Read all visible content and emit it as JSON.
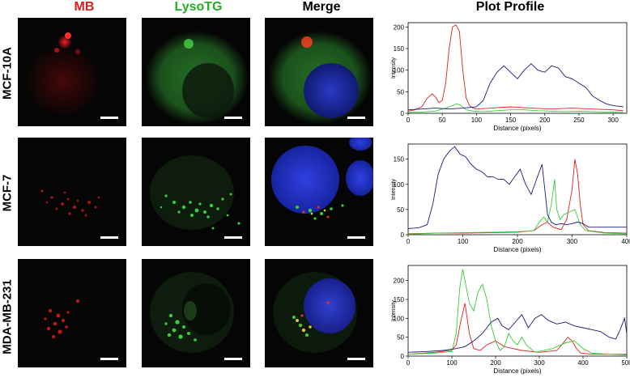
{
  "columns": {
    "mb": {
      "label": "MB",
      "color": "#d42020"
    },
    "lyso": {
      "label": "LysoTG",
      "color": "#22b022"
    },
    "merge": {
      "label": "Merge",
      "color": "#000000"
    },
    "plot": {
      "label": "Plot Profile",
      "color": "#000000"
    }
  },
  "rows": [
    {
      "label": "MCF-10A"
    },
    {
      "label": "MCF-7"
    },
    {
      "label": "MDA-MB-231"
    }
  ],
  "colors": {
    "red": "#e02020",
    "green": "#30d030",
    "blue": "#1a1a80"
  },
  "chart_data": [
    {
      "type": "line",
      "title": "",
      "xlabel": "Distance (pixels)",
      "ylabel": "Intensity",
      "xlim": [
        0,
        320
      ],
      "ylim": [
        0,
        210
      ],
      "xticks": [
        0,
        50,
        100,
        150,
        200,
        250,
        300
      ],
      "yticks": [
        0,
        50,
        100,
        150,
        200
      ],
      "series": [
        {
          "color": "#e02020",
          "x": [
            0,
            10,
            20,
            28,
            35,
            40,
            45,
            50,
            55,
            60,
            65,
            70,
            75,
            80,
            85,
            90,
            95,
            100,
            120,
            150,
            180,
            210,
            240,
            270,
            300,
            315
          ],
          "y": [
            5,
            8,
            15,
            35,
            45,
            38,
            25,
            30,
            70,
            150,
            200,
            205,
            190,
            100,
            35,
            18,
            12,
            10,
            12,
            15,
            12,
            10,
            12,
            10,
            8,
            6
          ]
        },
        {
          "color": "#30d030",
          "x": [
            0,
            20,
            40,
            55,
            65,
            70,
            75,
            80,
            85,
            95,
            110,
            130,
            150,
            170,
            190,
            210,
            230,
            250,
            270,
            290,
            315
          ],
          "y": [
            2,
            3,
            5,
            12,
            18,
            22,
            20,
            15,
            8,
            5,
            4,
            6,
            8,
            8,
            6,
            5,
            4,
            5,
            4,
            3,
            2
          ]
        },
        {
          "color": "#1a1a80",
          "x": [
            0,
            20,
            40,
            60,
            80,
            100,
            110,
            120,
            130,
            140,
            150,
            160,
            170,
            180,
            190,
            200,
            210,
            220,
            230,
            240,
            250,
            260,
            270,
            280,
            290,
            300,
            315
          ],
          "y": [
            8,
            10,
            12,
            10,
            12,
            15,
            30,
            70,
            95,
            110,
            95,
            80,
            100,
            115,
            100,
            95,
            110,
            105,
            85,
            80,
            70,
            60,
            40,
            30,
            22,
            18,
            15
          ]
        }
      ]
    },
    {
      "type": "line",
      "title": "",
      "xlabel": "Distance (pixels)",
      "ylabel": "Intensity",
      "xlim": [
        0,
        400
      ],
      "ylim": [
        0,
        180
      ],
      "xticks": [
        0,
        100,
        200,
        300,
        400
      ],
      "yticks": [
        0,
        50,
        100,
        150
      ],
      "series": [
        {
          "color": "#e02020",
          "x": [
            0,
            50,
            100,
            150,
            200,
            230,
            245,
            255,
            265,
            280,
            290,
            300,
            305,
            310,
            315,
            320,
            330,
            360,
            400
          ],
          "y": [
            2,
            3,
            3,
            4,
            5,
            8,
            20,
            25,
            15,
            10,
            30,
            90,
            150,
            120,
            60,
            20,
            8,
            4,
            3
          ]
        },
        {
          "color": "#30d030",
          "x": [
            0,
            50,
            100,
            150,
            200,
            230,
            240,
            248,
            255,
            262,
            268,
            272,
            278,
            285,
            295,
            305,
            315,
            325,
            360,
            400
          ],
          "y": [
            1,
            3,
            4,
            5,
            6,
            8,
            25,
            35,
            25,
            60,
            110,
            50,
            30,
            40,
            45,
            50,
            20,
            8,
            3,
            2
          ]
        },
        {
          "color": "#1a1a80",
          "x": [
            0,
            20,
            35,
            45,
            55,
            65,
            75,
            85,
            95,
            105,
            115,
            125,
            135,
            145,
            155,
            165,
            175,
            185,
            195,
            205,
            215,
            225,
            235,
            245,
            250,
            255,
            262,
            270,
            280,
            290,
            300,
            310,
            320,
            330,
            360,
            400
          ],
          "y": [
            12,
            14,
            20,
            60,
            120,
            150,
            165,
            175,
            160,
            155,
            140,
            130,
            125,
            115,
            115,
            110,
            110,
            100,
            115,
            130,
            100,
            80,
            110,
            140,
            90,
            40,
            25,
            20,
            22,
            20,
            22,
            25,
            22,
            15,
            15,
            15
          ]
        }
      ]
    },
    {
      "type": "line",
      "title": "",
      "xlabel": "Distance (pixels)",
      "ylabel": "Intensity",
      "xlim": [
        0,
        500
      ],
      "ylim": [
        0,
        240
      ],
      "xticks": [
        0,
        100,
        200,
        300,
        400,
        500
      ],
      "yticks": [
        0,
        50,
        100,
        150,
        200
      ],
      "series": [
        {
          "color": "#e02020",
          "x": [
            0,
            60,
            100,
            110,
            120,
            130,
            140,
            150,
            165,
            180,
            200,
            220,
            240,
            260,
            300,
            340,
            355,
            365,
            375,
            385,
            395,
            420,
            460,
            500
          ],
          "y": [
            5,
            10,
            15,
            30,
            90,
            140,
            60,
            20,
            15,
            30,
            40,
            25,
            20,
            15,
            10,
            15,
            35,
            50,
            40,
            20,
            8,
            5,
            5,
            5
          ]
        },
        {
          "color": "#30d030",
          "x": [
            0,
            60,
            100,
            110,
            118,
            125,
            130,
            140,
            150,
            160,
            170,
            180,
            190,
            200,
            210,
            220,
            230,
            240,
            250,
            260,
            270,
            290,
            330,
            360,
            380,
            400,
            420,
            460,
            500
          ],
          "y": [
            5,
            8,
            12,
            60,
            180,
            230,
            200,
            140,
            120,
            170,
            190,
            150,
            80,
            40,
            15,
            25,
            60,
            40,
            30,
            50,
            30,
            10,
            20,
            35,
            40,
            20,
            8,
            5,
            3
          ]
        },
        {
          "color": "#1a1a80",
          "x": [
            0,
            40,
            80,
            110,
            130,
            150,
            170,
            190,
            205,
            215,
            230,
            245,
            260,
            275,
            290,
            305,
            320,
            340,
            360,
            380,
            400,
            420,
            440,
            460,
            475,
            485,
            495,
            500
          ],
          "y": [
            10,
            12,
            15,
            20,
            25,
            40,
            60,
            90,
            100,
            80,
            70,
            90,
            110,
            75,
            100,
            110,
            95,
            85,
            90,
            80,
            75,
            70,
            65,
            50,
            45,
            70,
            100,
            60
          ]
        }
      ]
    }
  ]
}
